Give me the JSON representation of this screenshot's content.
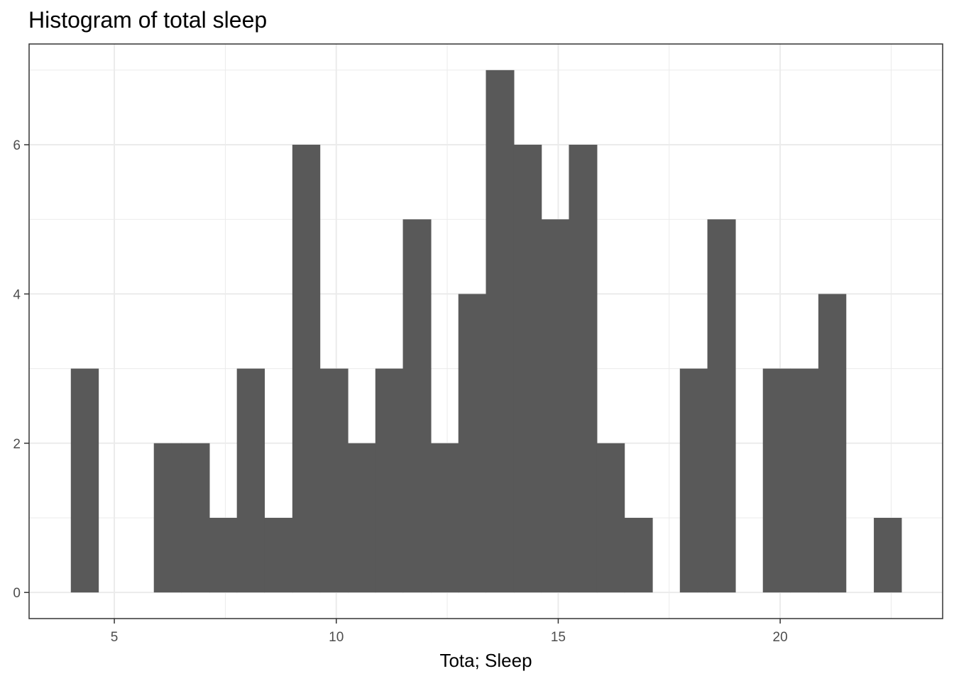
{
  "chart_data": {
    "type": "bar",
    "title": "Histogram of total sleep",
    "xlabel": "Tota; Sleep",
    "ylabel": "",
    "bin_width": 0.6233,
    "bins": [
      {
        "x_start": 4.02,
        "x_end": 4.64,
        "count": 3
      },
      {
        "x_start": 4.64,
        "x_end": 5.27,
        "count": 0
      },
      {
        "x_start": 5.27,
        "x_end": 5.89,
        "count": 0
      },
      {
        "x_start": 5.89,
        "x_end": 6.51,
        "count": 2
      },
      {
        "x_start": 6.51,
        "x_end": 7.14,
        "count": 2
      },
      {
        "x_start": 7.14,
        "x_end": 7.76,
        "count": 1
      },
      {
        "x_start": 7.76,
        "x_end": 8.38,
        "count": 3
      },
      {
        "x_start": 8.38,
        "x_end": 9.01,
        "count": 1
      },
      {
        "x_start": 9.01,
        "x_end": 9.63,
        "count": 6
      },
      {
        "x_start": 9.63,
        "x_end": 10.26,
        "count": 3
      },
      {
        "x_start": 10.26,
        "x_end": 10.88,
        "count": 2
      },
      {
        "x_start": 10.88,
        "x_end": 11.5,
        "count": 3
      },
      {
        "x_start": 11.5,
        "x_end": 12.13,
        "count": 5
      },
      {
        "x_start": 12.13,
        "x_end": 12.75,
        "count": 2
      },
      {
        "x_start": 12.75,
        "x_end": 13.37,
        "count": 4
      },
      {
        "x_start": 13.37,
        "x_end": 14.0,
        "count": 7
      },
      {
        "x_start": 14.0,
        "x_end": 14.62,
        "count": 6
      },
      {
        "x_start": 14.62,
        "x_end": 15.24,
        "count": 5
      },
      {
        "x_start": 15.24,
        "x_end": 15.87,
        "count": 6
      },
      {
        "x_start": 15.87,
        "x_end": 16.49,
        "count": 2
      },
      {
        "x_start": 16.49,
        "x_end": 17.12,
        "count": 1
      },
      {
        "x_start": 17.12,
        "x_end": 17.74,
        "count": 0
      },
      {
        "x_start": 17.74,
        "x_end": 18.36,
        "count": 3
      },
      {
        "x_start": 18.36,
        "x_end": 18.99,
        "count": 5
      },
      {
        "x_start": 18.99,
        "x_end": 19.61,
        "count": 0
      },
      {
        "x_start": 19.61,
        "x_end": 20.23,
        "count": 3
      },
      {
        "x_start": 20.23,
        "x_end": 20.86,
        "count": 3
      },
      {
        "x_start": 20.86,
        "x_end": 21.48,
        "count": 4
      },
      {
        "x_start": 21.48,
        "x_end": 22.11,
        "count": 0
      },
      {
        "x_start": 22.11,
        "x_end": 22.73,
        "count": 1
      }
    ],
    "xlim": [
      3.08,
      23.66
    ],
    "ylim": [
      -0.35,
      7.35
    ],
    "x_ticks": [
      5,
      10,
      15,
      20
    ],
    "x_tick_labels": [
      "5",
      "10",
      "15",
      "20"
    ],
    "y_ticks": [
      0,
      2,
      4,
      6
    ],
    "y_tick_labels": [
      "0",
      "2",
      "4",
      "6"
    ],
    "grid": true,
    "bar_color": "#595959",
    "grid_color": "#ebebeb",
    "border_color": "#333333"
  }
}
